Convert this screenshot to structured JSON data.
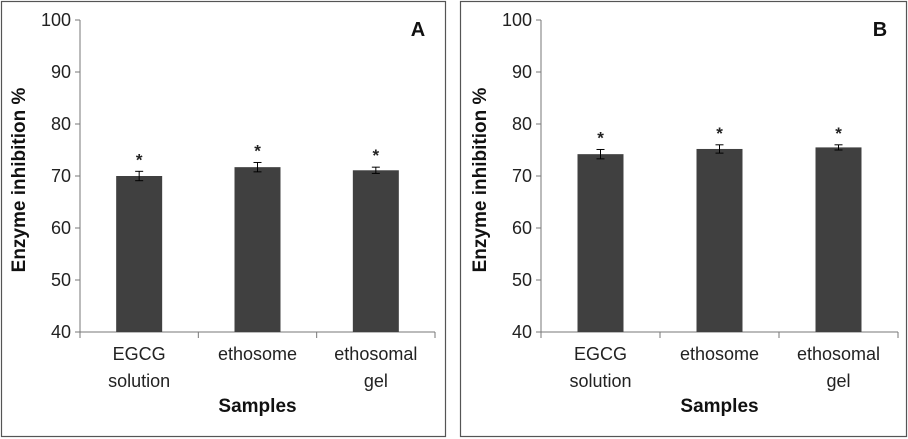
{
  "chart_data": [
    {
      "type": "bar",
      "panel_label": "A",
      "categories": [
        [
          "EGCG",
          "solution"
        ],
        [
          "ethosome"
        ],
        [
          "ethosomal",
          "gel"
        ]
      ],
      "values": [
        70.0,
        71.7,
        71.1
      ],
      "errors": [
        0.9,
        0.9,
        0.6
      ],
      "annotations": [
        "*",
        "*",
        "*"
      ],
      "xlabel": "Samples",
      "ylabel": "Enzyme inhibition %",
      "ylim": [
        40,
        100
      ],
      "yticks": [
        40,
        50,
        60,
        70,
        80,
        90,
        100
      ],
      "bar_color": "#404040",
      "grid": false
    },
    {
      "type": "bar",
      "panel_label": "B",
      "categories": [
        [
          "EGCG",
          "solution"
        ],
        [
          "ethosome"
        ],
        [
          "ethosomal",
          "gel"
        ]
      ],
      "values": [
        74.2,
        75.2,
        75.5
      ],
      "errors": [
        0.9,
        0.8,
        0.5
      ],
      "annotations": [
        "*",
        "*",
        "*"
      ],
      "xlabel": "Samples",
      "ylabel": "Enzyme inhibition %",
      "ylim": [
        40,
        100
      ],
      "yticks": [
        40,
        50,
        60,
        70,
        80,
        90,
        100
      ],
      "bar_color": "#404040",
      "grid": false
    }
  ]
}
